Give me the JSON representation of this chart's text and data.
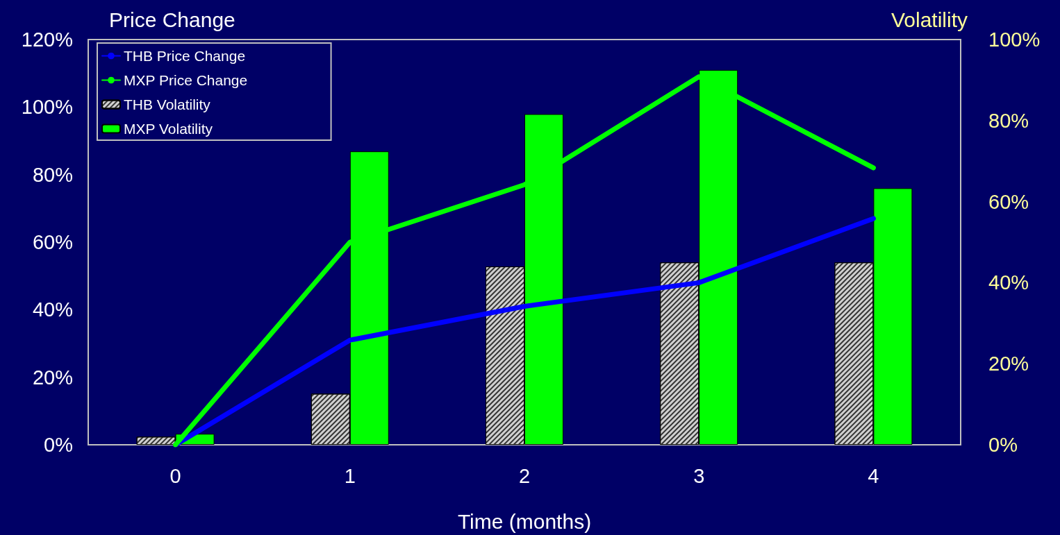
{
  "chart_data": {
    "type": "bar",
    "categories": [
      "0",
      "1",
      "2",
      "3",
      "4"
    ],
    "xlabel": "Time (months)",
    "ylabel": "Price Change",
    "y2label": "Volatility",
    "ylim": [
      0,
      120
    ],
    "yticks": [
      {
        "value": 0,
        "label": "0%"
      },
      {
        "value": 20,
        "label": "20%"
      },
      {
        "value": 40,
        "label": "40%"
      },
      {
        "value": 60,
        "label": "60%"
      },
      {
        "value": 80,
        "label": "80%"
      },
      {
        "value": 100,
        "label": "100%"
      },
      {
        "value": 120,
        "label": "120%"
      }
    ],
    "y2lim": [
      0,
      100
    ],
    "y2ticks": [
      {
        "value": 0,
        "label": "0%"
      },
      {
        "value": 20,
        "label": "20%"
      },
      {
        "value": 40,
        "label": "40%"
      },
      {
        "value": 60,
        "label": "60%"
      },
      {
        "value": 80,
        "label": "80%"
      },
      {
        "value": 100,
        "label": "100%"
      }
    ],
    "grid": false,
    "legend": "top left",
    "marker": "none",
    "series": [
      {
        "name": "THB Price Change",
        "type": "line",
        "color": "#0000ff",
        "values": [
          0,
          31,
          41,
          48,
          67
        ]
      },
      {
        "name": "MXP Price Change",
        "type": "line",
        "color": "#00ff00",
        "values": [
          0,
          60,
          77,
          109,
          82
        ]
      },
      {
        "name": "THB Volatility",
        "axis": "y2",
        "color": "#d0d0d0",
        "values": [
          2,
          12.6,
          44,
          45,
          45
        ]
      },
      {
        "name": "MXP Volatility",
        "axis": "y2",
        "color": "#00ff00",
        "values": [
          2.7,
          72.4,
          81.6,
          92.5,
          63.3
        ]
      }
    ]
  }
}
